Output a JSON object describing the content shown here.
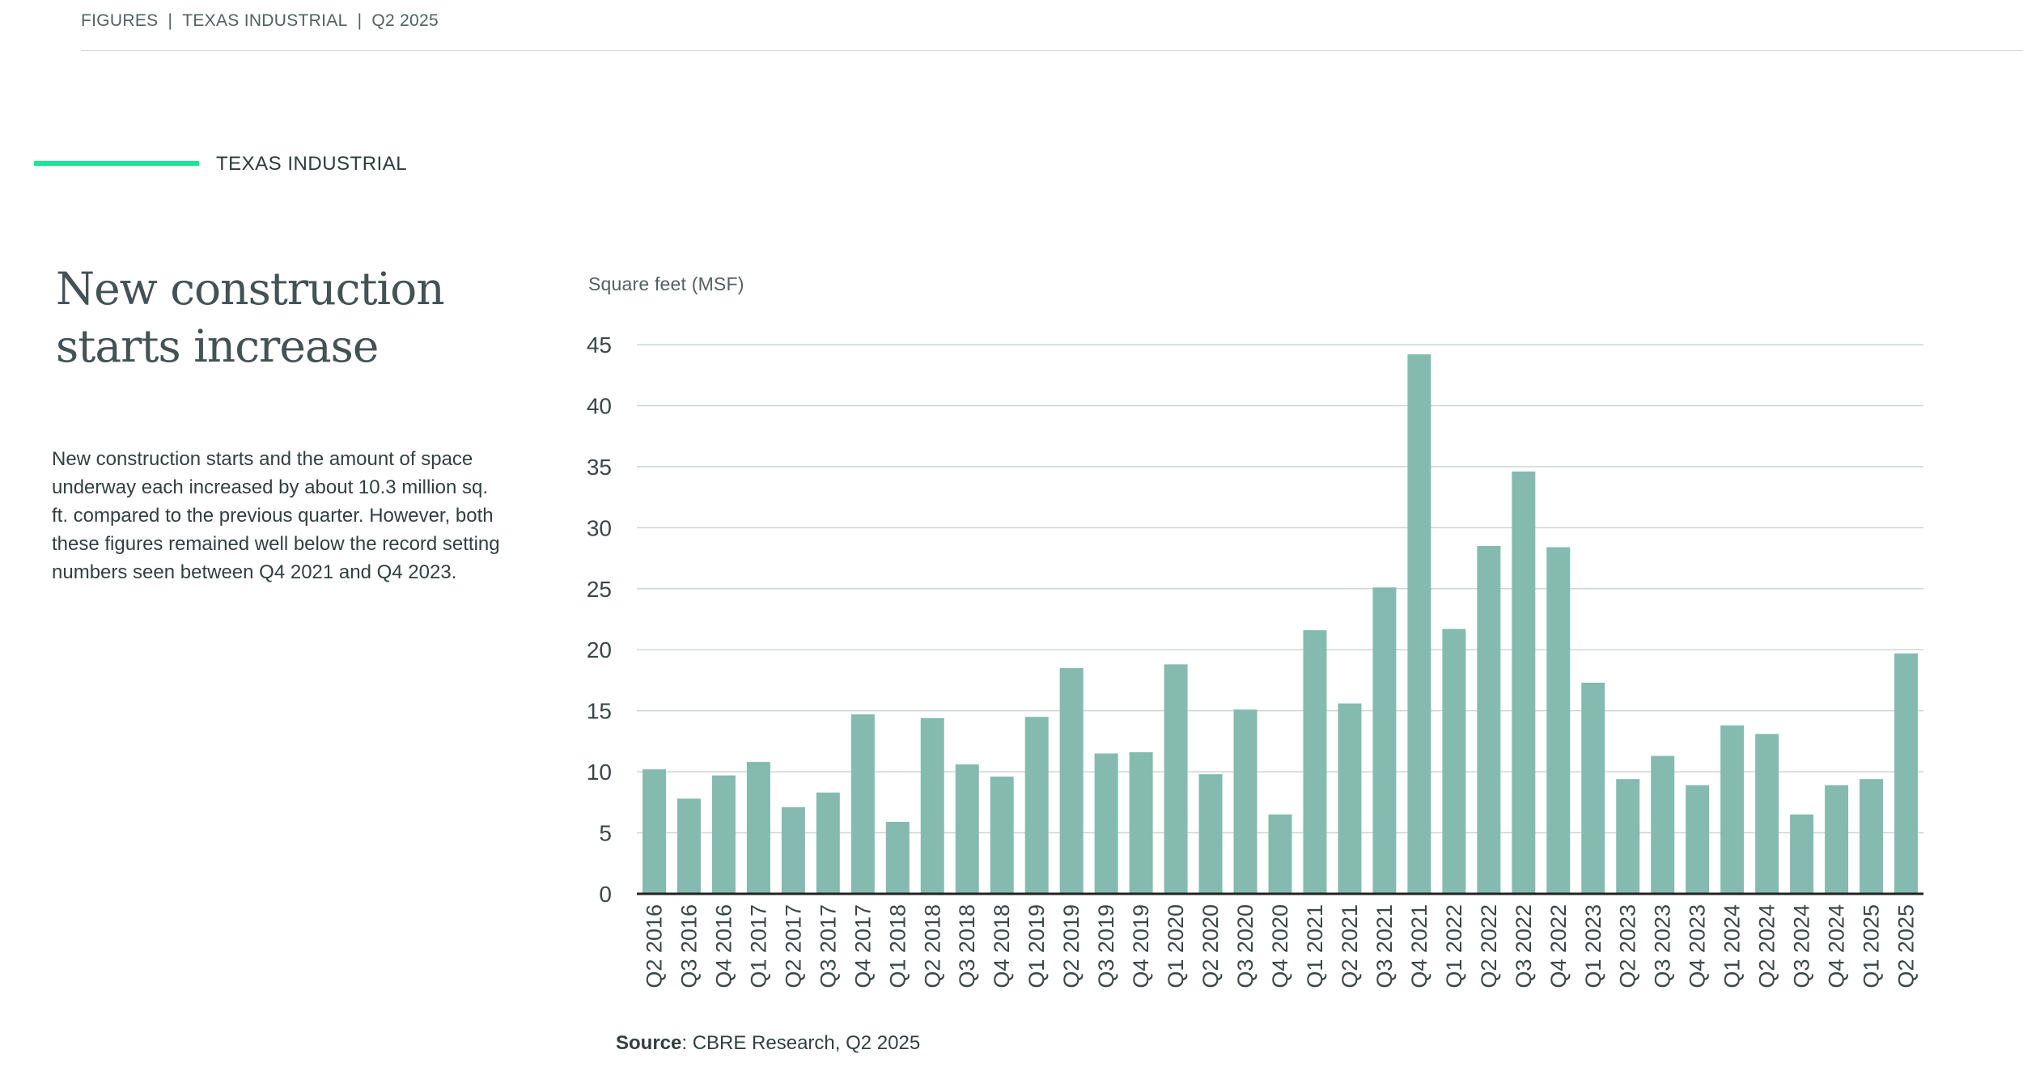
{
  "header": {
    "items": [
      "FIGURES",
      "TEXAS INDUSTRIAL",
      "Q2 2025"
    ]
  },
  "section": {
    "label": "TEXAS INDUSTRIAL"
  },
  "title": {
    "line1": "New construction",
    "line2": "starts increase"
  },
  "body_text": "New construction starts and the amount of space underway each increased by about 10.3 million sq. ft. compared to the previous quarter. However, both these figures remained well below the record setting numbers seen between Q4 2021 and Q4 2023.",
  "colors": {
    "bar": "#85bbae",
    "accent": "#17e88f",
    "grid": "#cfd5d5",
    "axis": "#222222"
  },
  "chart_data": {
    "type": "bar",
    "units_label": "Square feet (MSF)",
    "categories": [
      "Q2 2016",
      "Q3 2016",
      "Q4 2016",
      "Q1 2017",
      "Q2 2017",
      "Q3 2017",
      "Q4 2017",
      "Q1 2018",
      "Q2 2018",
      "Q3 2018",
      "Q4 2018",
      "Q1 2019",
      "Q2 2019",
      "Q3 2019",
      "Q4 2019",
      "Q1 2020",
      "Q2 2020",
      "Q3 2020",
      "Q4 2020",
      "Q1 2021",
      "Q2 2021",
      "Q3 2021",
      "Q4 2021",
      "Q1 2022",
      "Q2 2022",
      "Q3 2022",
      "Q4 2022",
      "Q1 2023",
      "Q2 2023",
      "Q3 2023",
      "Q4 2023",
      "Q1 2024",
      "Q2 2024",
      "Q3 2024",
      "Q4 2024",
      "Q1 2025",
      "Q2 2025"
    ],
    "values": [
      10.2,
      7.8,
      9.7,
      10.8,
      7.1,
      8.3,
      14.7,
      5.9,
      14.4,
      10.6,
      9.6,
      14.5,
      18.5,
      11.5,
      11.6,
      18.8,
      9.8,
      15.1,
      6.5,
      21.6,
      15.6,
      25.1,
      44.2,
      21.7,
      28.5,
      34.6,
      28.4,
      17.3,
      9.4,
      11.3,
      8.9,
      13.8,
      13.1,
      6.5,
      8.9,
      9.4,
      19.7
    ],
    "ylim": [
      0,
      45
    ],
    "yticks": [
      "0",
      "5",
      "10",
      "15",
      "20",
      "25",
      "30",
      "35",
      "40",
      "45"
    ],
    "grid": true,
    "source_label": "Source",
    "source_text": ": CBRE Research, Q2 2025"
  }
}
